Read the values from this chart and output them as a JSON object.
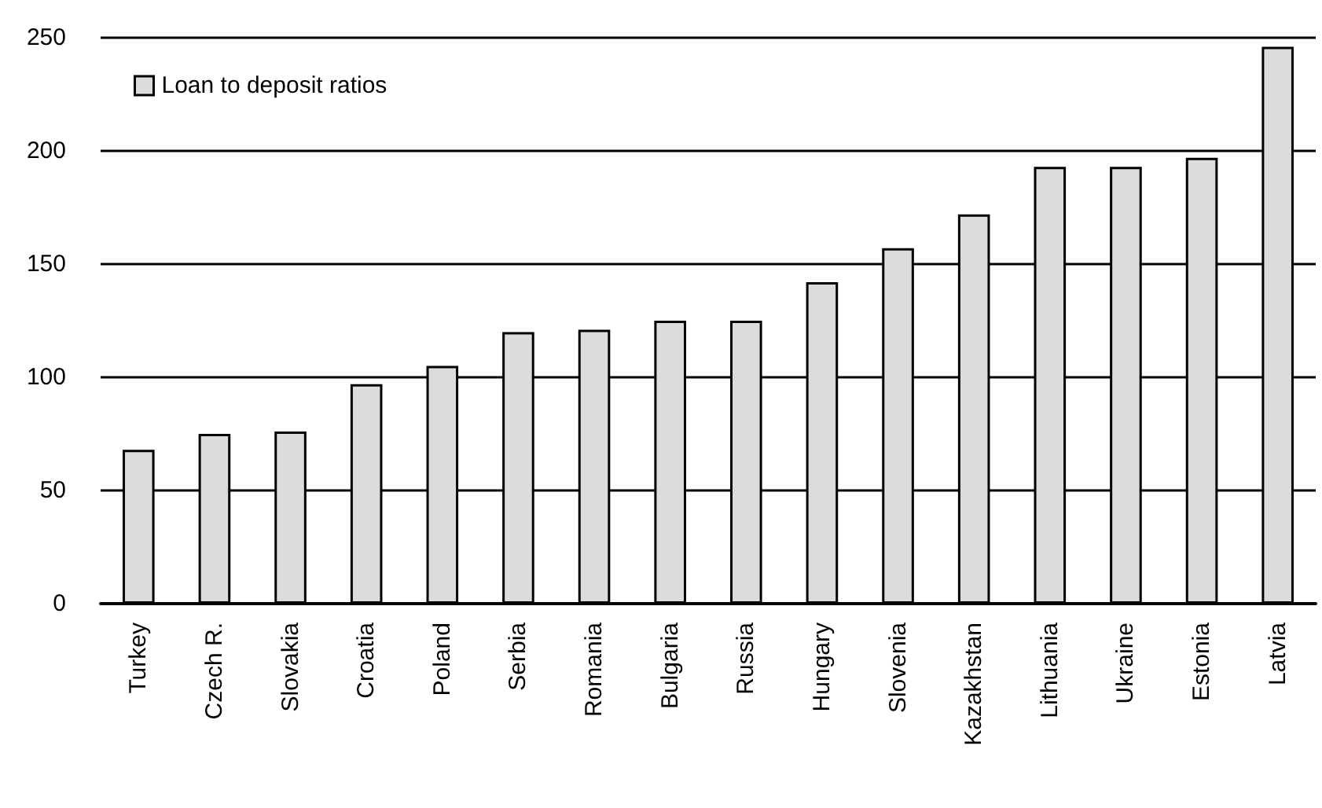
{
  "chart_data": {
    "type": "bar",
    "categories": [
      "Turkey",
      "Czech R.",
      "Slovakia",
      "Croatia",
      "Poland",
      "Serbia",
      "Romania",
      "Bulgaria",
      "Russia",
      "Hungary",
      "Slovenia",
      "Kazakhstan",
      "Lithuania",
      "Ukraine",
      "Estonia",
      "Latvia"
    ],
    "series": [
      {
        "name": "Loan to deposit ratios",
        "color": "#dcdcdc",
        "values": [
          68,
          75,
          76,
          97,
          105,
          120,
          121,
          125,
          125,
          142,
          157,
          172,
          193,
          193,
          197,
          246
        ]
      }
    ],
    "ylim": [
      0,
      250
    ],
    "yticks": [
      0,
      50,
      100,
      150,
      200,
      250
    ],
    "grid": "y",
    "legend": "top left"
  }
}
